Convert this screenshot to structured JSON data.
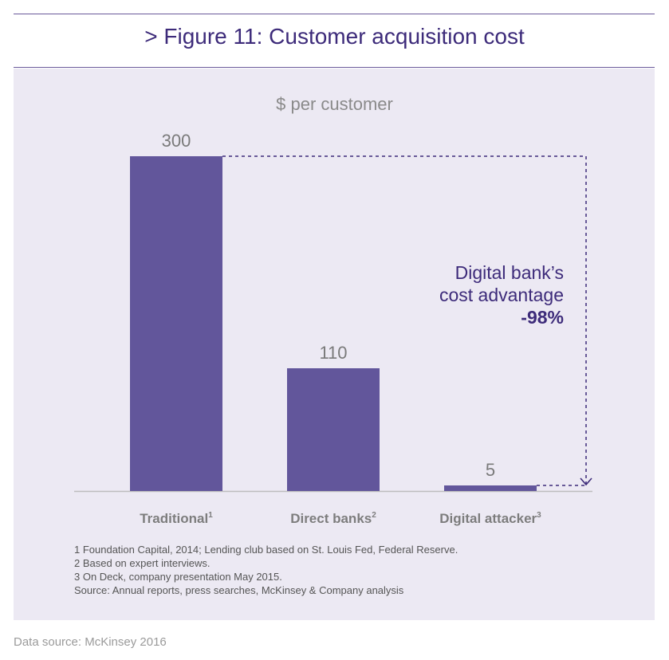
{
  "header": {
    "title": "> Figure 11: Customer acquisition cost"
  },
  "annotation": {
    "line1": "Digital bank’s",
    "line2": "cost advantage",
    "value": "-98%"
  },
  "footnotes": [
    "1 Foundation Capital, 2014; Lending club based on St. Louis Fed, Federal Reserve.",
    "2 Based on expert interviews.",
    "3 On Deck, company presentation May 2015.",
    "Source: Annual reports, press searches, McKinsey & Company analysis"
  ],
  "data_source": "Data source: McKinsey 2016",
  "colors": {
    "bar": "#62569b",
    "title": "#3d2b7a",
    "panel": "#ece9f3",
    "baseline": "#bdbdbd"
  },
  "chart_data": {
    "type": "bar",
    "title": "",
    "ylabel": "$ per customer",
    "xlabel": "",
    "categories": [
      "Traditional",
      "Direct banks",
      "Digital attacker"
    ],
    "category_superscripts": [
      "1",
      "2",
      "3"
    ],
    "values": [
      300,
      110,
      5
    ],
    "ylim": [
      0,
      300
    ],
    "grid": false,
    "legend": "none"
  }
}
